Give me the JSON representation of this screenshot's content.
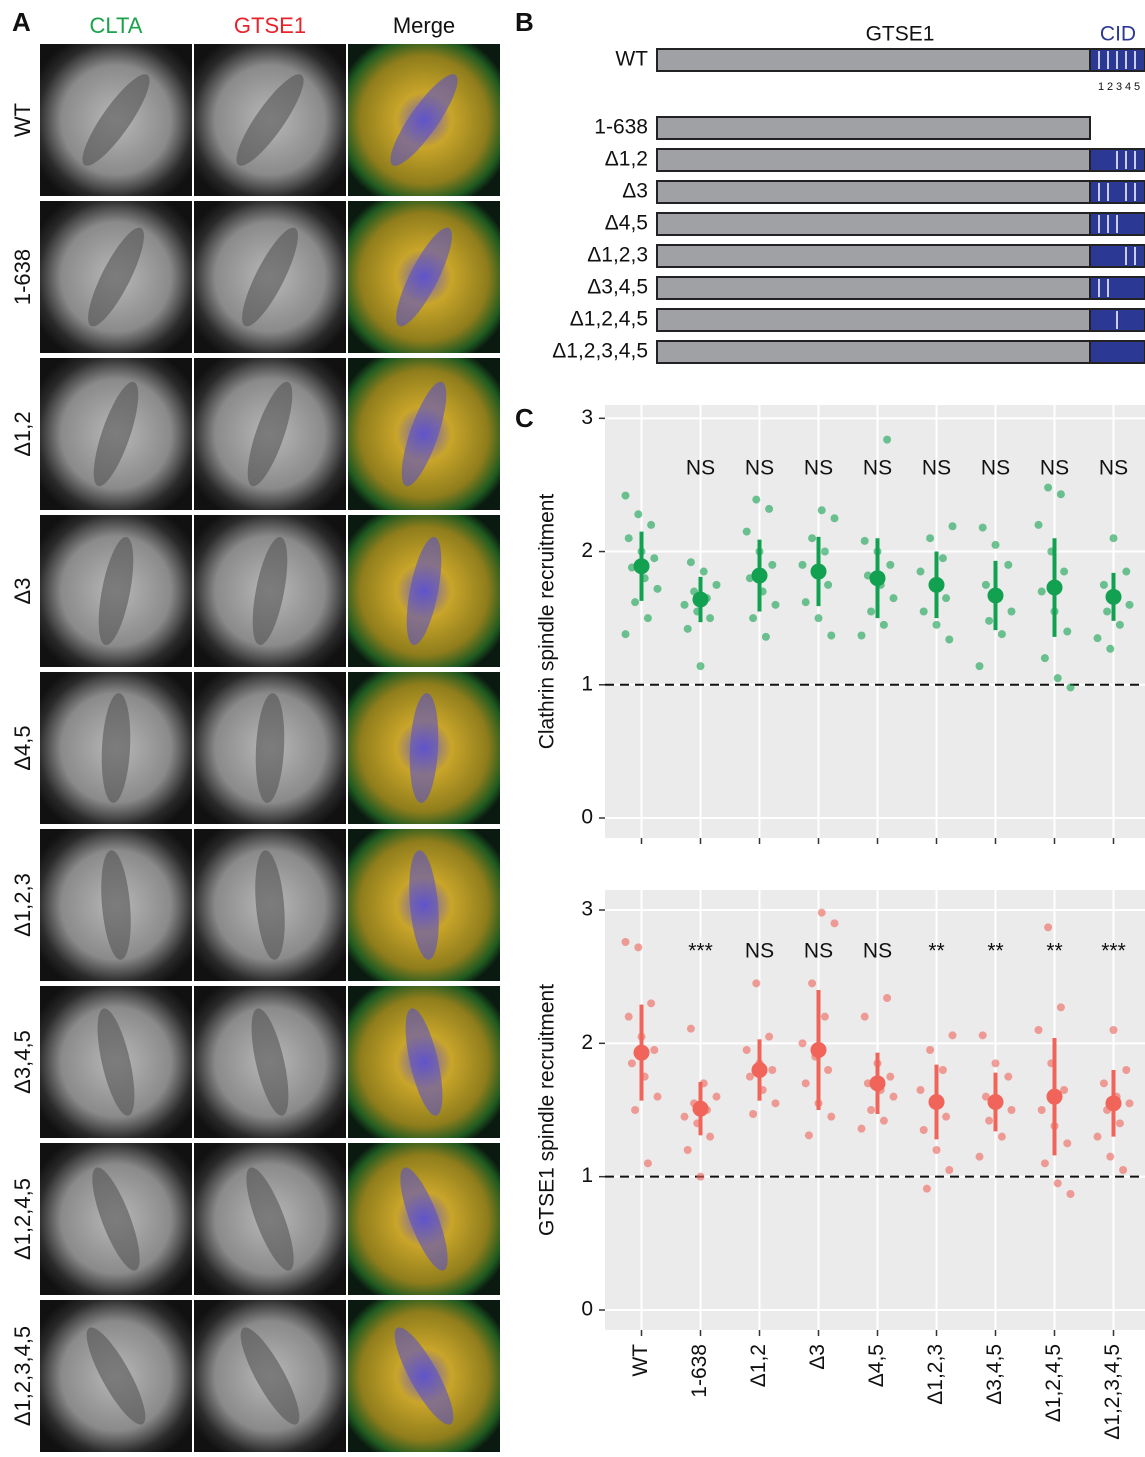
{
  "panel_labels": [
    "A",
    "B",
    "C"
  ],
  "panel_a": {
    "columns": [
      {
        "label": "CLTA",
        "color": "#1aa34a"
      },
      {
        "label": "GTSE1",
        "color": "#e8222a"
      },
      {
        "label": "Merge",
        "color": "#111111"
      }
    ],
    "rows": [
      "WT",
      "1-638",
      "Δ1,2",
      "Δ3",
      "Δ4,5",
      "Δ1,2,3",
      "Δ3,4,5",
      "Δ1,2,4,5",
      "Δ1,2,3,4,5"
    ]
  },
  "panel_b": {
    "protein": "GTSE1",
    "domain": "CID",
    "motif_labels": [
      "1",
      "2",
      "3",
      "4",
      "5"
    ],
    "wt": {
      "label": "WT",
      "cid": true,
      "motifs": [
        1,
        2,
        3,
        4,
        5
      ]
    },
    "constructs": [
      {
        "label": "1-638",
        "cid": false,
        "motifs": []
      },
      {
        "label": "Δ1,2",
        "cid": true,
        "motifs": [
          3,
          4,
          5
        ]
      },
      {
        "label": "Δ3",
        "cid": true,
        "motifs": [
          1,
          2,
          4,
          5
        ]
      },
      {
        "label": "Δ4,5",
        "cid": true,
        "motifs": [
          1,
          2,
          3
        ]
      },
      {
        "label": "Δ1,2,3",
        "cid": true,
        "motifs": [
          4,
          5
        ]
      },
      {
        "label": "Δ3,4,5",
        "cid": true,
        "motifs": [
          1,
          2
        ]
      },
      {
        "label": "Δ1,2,4,5",
        "cid": true,
        "motifs": [
          3
        ]
      },
      {
        "label": "Δ1,2,3,4,5",
        "cid": true,
        "motifs": []
      }
    ]
  },
  "chart_data": [
    {
      "type": "dotplot",
      "ylabel": "Clathrin spindle recruitment",
      "color": "#12a150",
      "ylim": [
        -0.15,
        3.1
      ],
      "yticks": [
        0,
        1,
        2,
        3
      ],
      "hline": 1,
      "categories": [
        null,
        null,
        null,
        null,
        null,
        null,
        null,
        null,
        null
      ],
      "significance": [
        null,
        "NS",
        "NS",
        "NS",
        "NS",
        "NS",
        "NS",
        "NS",
        "NS"
      ],
      "means": [
        1.89,
        1.64,
        1.82,
        1.85,
        1.8,
        1.75,
        1.67,
        1.73,
        1.66
      ],
      "errors": [
        0.26,
        0.17,
        0.27,
        0.26,
        0.3,
        0.25,
        0.26,
        0.37,
        0.18
      ],
      "points": [
        [
          2.42,
          2.28,
          2.2,
          2.1,
          2.0,
          1.95,
          1.88,
          1.8,
          1.72,
          1.62,
          1.5,
          1.38
        ],
        [
          1.92,
          1.85,
          1.75,
          1.7,
          1.65,
          1.6,
          1.55,
          1.5,
          1.42,
          1.14
        ],
        [
          2.39,
          2.32,
          2.15,
          2.0,
          1.9,
          1.8,
          1.7,
          1.6,
          1.5,
          1.36
        ],
        [
          2.31,
          2.25,
          2.1,
          2.0,
          1.9,
          1.85,
          1.75,
          1.62,
          1.5,
          1.37
        ],
        [
          2.84,
          2.08,
          2.0,
          1.9,
          1.82,
          1.75,
          1.65,
          1.55,
          1.45,
          1.37
        ],
        [
          2.19,
          2.1,
          1.95,
          1.85,
          1.75,
          1.65,
          1.55,
          1.45,
          1.34
        ],
        [
          2.18,
          2.05,
          1.9,
          1.75,
          1.65,
          1.55,
          1.48,
          1.38,
          1.14
        ],
        [
          2.48,
          2.43,
          2.2,
          2.0,
          1.85,
          1.7,
          1.55,
          1.4,
          1.2,
          1.05,
          0.98
        ],
        [
          2.1,
          1.85,
          1.75,
          1.68,
          1.6,
          1.55,
          1.45,
          1.35,
          1.27
        ]
      ]
    },
    {
      "type": "dotplot",
      "ylabel": "GTSE1 spindle recruitment",
      "color": "#f0645a",
      "ylim": [
        -0.15,
        3.15
      ],
      "yticks": [
        0,
        1,
        2,
        3
      ],
      "hline": 1,
      "categories": [
        "WT",
        "1-638",
        "Δ1,2",
        "Δ3",
        "Δ4,5",
        "Δ1,2,3",
        "Δ3,4,5",
        "Δ1,2,4,5",
        "Δ1,2,3,4,5"
      ],
      "significance": [
        null,
        "***",
        "NS",
        "NS",
        "NS",
        "**",
        "**",
        "**",
        "***"
      ],
      "means": [
        1.93,
        1.51,
        1.8,
        1.95,
        1.7,
        1.56,
        1.56,
        1.6,
        1.55
      ],
      "errors": [
        0.36,
        0.2,
        0.23,
        0.45,
        0.23,
        0.28,
        0.22,
        0.44,
        0.25
      ],
      "points": [
        [
          2.76,
          2.72,
          2.3,
          2.2,
          2.05,
          1.95,
          1.85,
          1.75,
          1.6,
          1.5,
          1.1
        ],
        [
          2.11,
          1.7,
          1.6,
          1.55,
          1.5,
          1.45,
          1.4,
          1.3,
          1.2,
          1.0
        ],
        [
          2.45,
          2.05,
          1.95,
          1.85,
          1.8,
          1.75,
          1.65,
          1.55,
          1.47
        ],
        [
          2.98,
          2.9,
          2.45,
          2.2,
          2.0,
          1.9,
          1.8,
          1.7,
          1.55,
          1.45,
          1.31
        ],
        [
          2.34,
          2.2,
          1.85,
          1.75,
          1.7,
          1.65,
          1.6,
          1.5,
          1.42,
          1.36
        ],
        [
          2.06,
          1.95,
          1.8,
          1.65,
          1.55,
          1.45,
          1.35,
          1.2,
          1.05,
          0.91
        ],
        [
          2.06,
          1.85,
          1.75,
          1.6,
          1.55,
          1.5,
          1.42,
          1.3,
          1.15
        ],
        [
          2.87,
          2.27,
          2.1,
          1.85,
          1.65,
          1.5,
          1.38,
          1.25,
          1.1,
          0.95,
          0.87
        ],
        [
          2.1,
          1.8,
          1.7,
          1.6,
          1.55,
          1.5,
          1.4,
          1.3,
          1.15,
          1.05
        ]
      ]
    }
  ]
}
